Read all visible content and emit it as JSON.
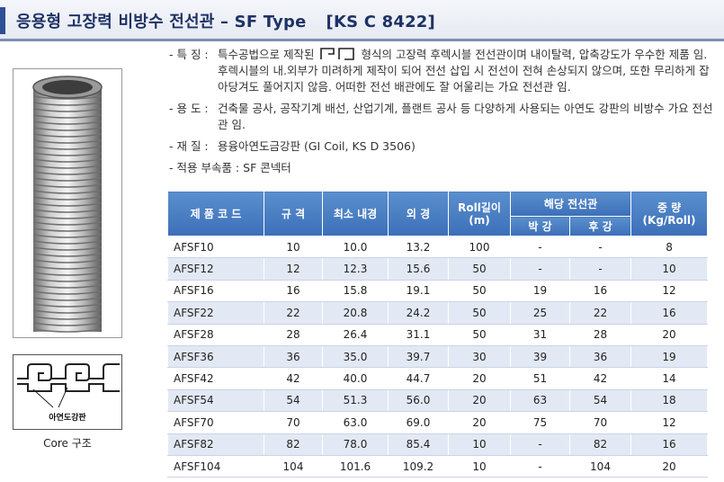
{
  "header": {
    "title": "응용형 고장력 비방수 전선관 – SF Type",
    "standard": "[KS C 8422]"
  },
  "left_panel": {
    "core_label": "아연도강판",
    "core_caption": "Core 구조"
  },
  "specs": {
    "feature_label": "- 특 징 :",
    "feature_text_a": "특수공법으로 제작된",
    "feature_text_b": "형식의 고장력 후렉시블 전선관이며 내이탈력, 압축강도가 우수한 제품 임. 후렉시블의 내.외부가 미려하게 제작이 되어 전선 삽입 시 전선이 전혀 손상되지 않으며, 또한 무리하게 잡아당겨도 풀어지지 않음. 어떠한 전선 배관에도 잘 어울리는 가요 전선관 임.",
    "usage_label": "- 용 도 :",
    "usage_text": "건축물 공사, 공작기계 배선, 산업기계, 플랜트 공사 등 다양하게 사용되는 아연도 강판의 비방수 가요 전선관 임.",
    "material_label": "- 재 질 :",
    "material_text": "용융아연도금강판 (GI Coil, KS D 3506)",
    "fitting_label": "- 적용 부속품 :",
    "fitting_text": "SF 콘넥터"
  },
  "table": {
    "headers": {
      "product_code": "제 품 코 드",
      "size": "규   격",
      "min_id": "최소 내경",
      "od": "외 경",
      "roll_length": "Roll길이",
      "roll_unit": "(m)",
      "conduit": "해당 전선관",
      "thin": "박 강",
      "thick": "후 강",
      "weight": "중 량",
      "weight_unit": "(Kg/Roll)"
    },
    "rows": [
      [
        "AFSF10",
        "10",
        "10.0",
        "13.2",
        "100",
        "-",
        "-",
        "8"
      ],
      [
        "AFSF12",
        "12",
        "12.3",
        "15.6",
        "50",
        "-",
        "-",
        "10"
      ],
      [
        "AFSF16",
        "16",
        "15.8",
        "19.1",
        "50",
        "19",
        "16",
        "12"
      ],
      [
        "AFSF22",
        "22",
        "20.8",
        "24.2",
        "50",
        "25",
        "22",
        "16"
      ],
      [
        "AFSF28",
        "28",
        "26.4",
        "31.1",
        "50",
        "31",
        "28",
        "20"
      ],
      [
        "AFSF36",
        "36",
        "35.0",
        "39.7",
        "30",
        "39",
        "36",
        "19"
      ],
      [
        "AFSF42",
        "42",
        "40.0",
        "44.7",
        "20",
        "51",
        "42",
        "14"
      ],
      [
        "AFSF54",
        "54",
        "51.3",
        "56.0",
        "20",
        "63",
        "54",
        "18"
      ],
      [
        "AFSF70",
        "70",
        "63.0",
        "69.0",
        "20",
        "75",
        "70",
        "12"
      ],
      [
        "AFSF82",
        "82",
        "78.0",
        "85.4",
        "10",
        "-",
        "82",
        "16"
      ],
      [
        "AFSF104",
        "104",
        "101.6",
        "109.2",
        "10",
        "-",
        "104",
        "20"
      ]
    ]
  },
  "colors": {
    "title_text": "#1f3266",
    "header_blue": "#4a7fc4",
    "row_alt": "#e3e9f4"
  }
}
